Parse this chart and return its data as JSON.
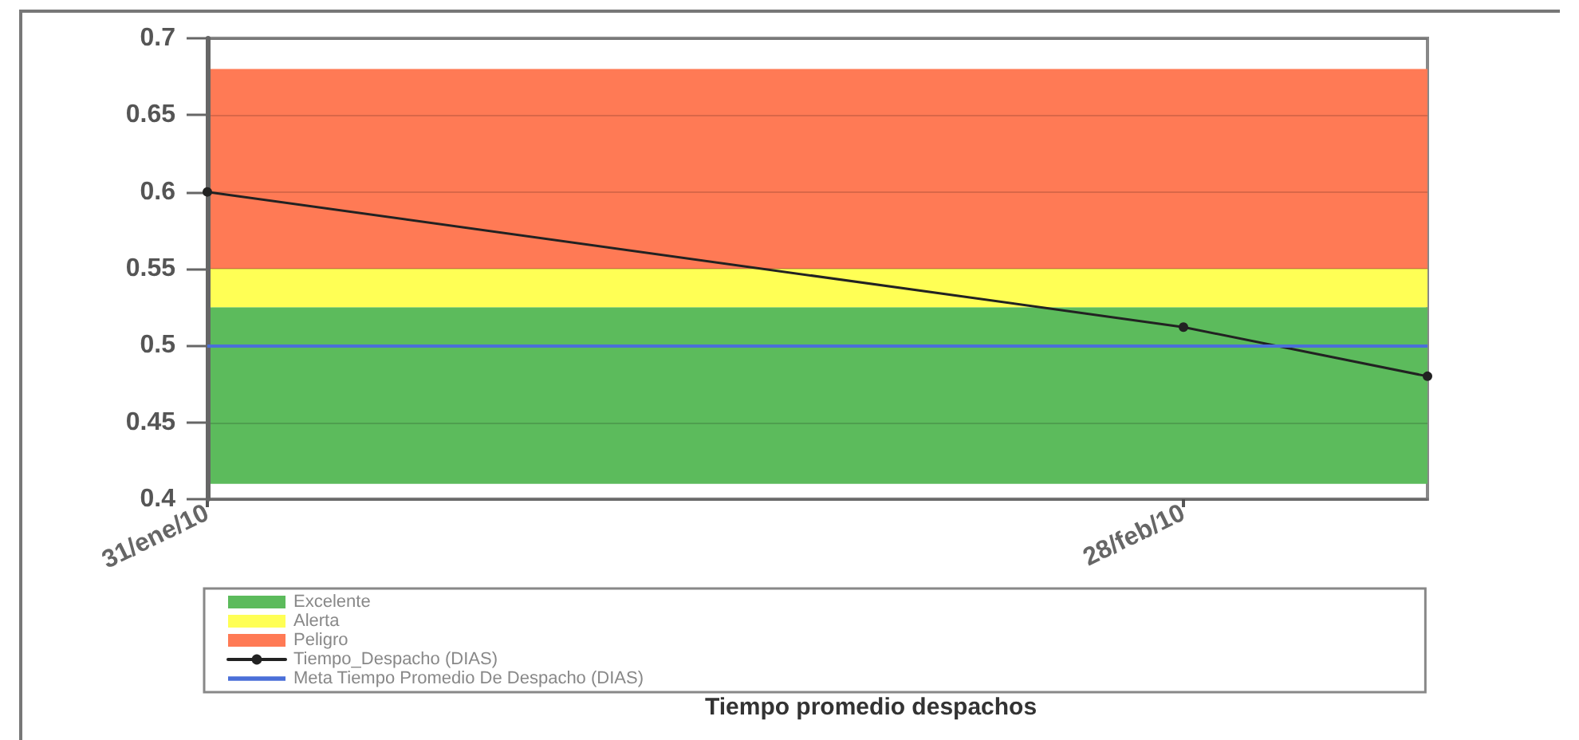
{
  "chart_data": {
    "type": "line",
    "title": "Tiempo promedio despachos",
    "x": [
      "2010-01-31",
      "2010-02-28",
      "2010-03-07"
    ],
    "xlim": [
      "2010-01-31",
      "2010-03-07"
    ],
    "xticks": [
      {
        "value": "2010-01-31",
        "label": "31/ene/10"
      },
      {
        "value": "2010-02-28",
        "label": "28/feb/10"
      }
    ],
    "ylim": [
      0.4,
      0.7
    ],
    "yticks": [
      0.4,
      0.45,
      0.5,
      0.55,
      0.6,
      0.65,
      0.7
    ],
    "series": [
      {
        "name": "Tiempo_Despacho (DIAS)",
        "color": "#222222",
        "values": [
          0.6,
          0.512,
          0.48
        ]
      }
    ],
    "bands": [
      {
        "axis": "y",
        "from": 0.41,
        "to": 0.525,
        "label": "Excelente",
        "color": "#5cbb5c"
      },
      {
        "axis": "y",
        "from": 0.525,
        "to": 0.55,
        "label": "Alerta",
        "color": "#ffff55"
      },
      {
        "axis": "y",
        "from": 0.55,
        "to": 0.68,
        "label": "Peligro",
        "color": "#ff7a55"
      }
    ],
    "ref_lines": [
      {
        "axis": "y",
        "value": 0.5,
        "label": "Meta Tiempo Promedio De Despacho (DIAS)",
        "color": "#4a6fd8"
      }
    ],
    "grid": "y",
    "legend": "bottom left",
    "marker": "circle",
    "line_style": "solid"
  }
}
